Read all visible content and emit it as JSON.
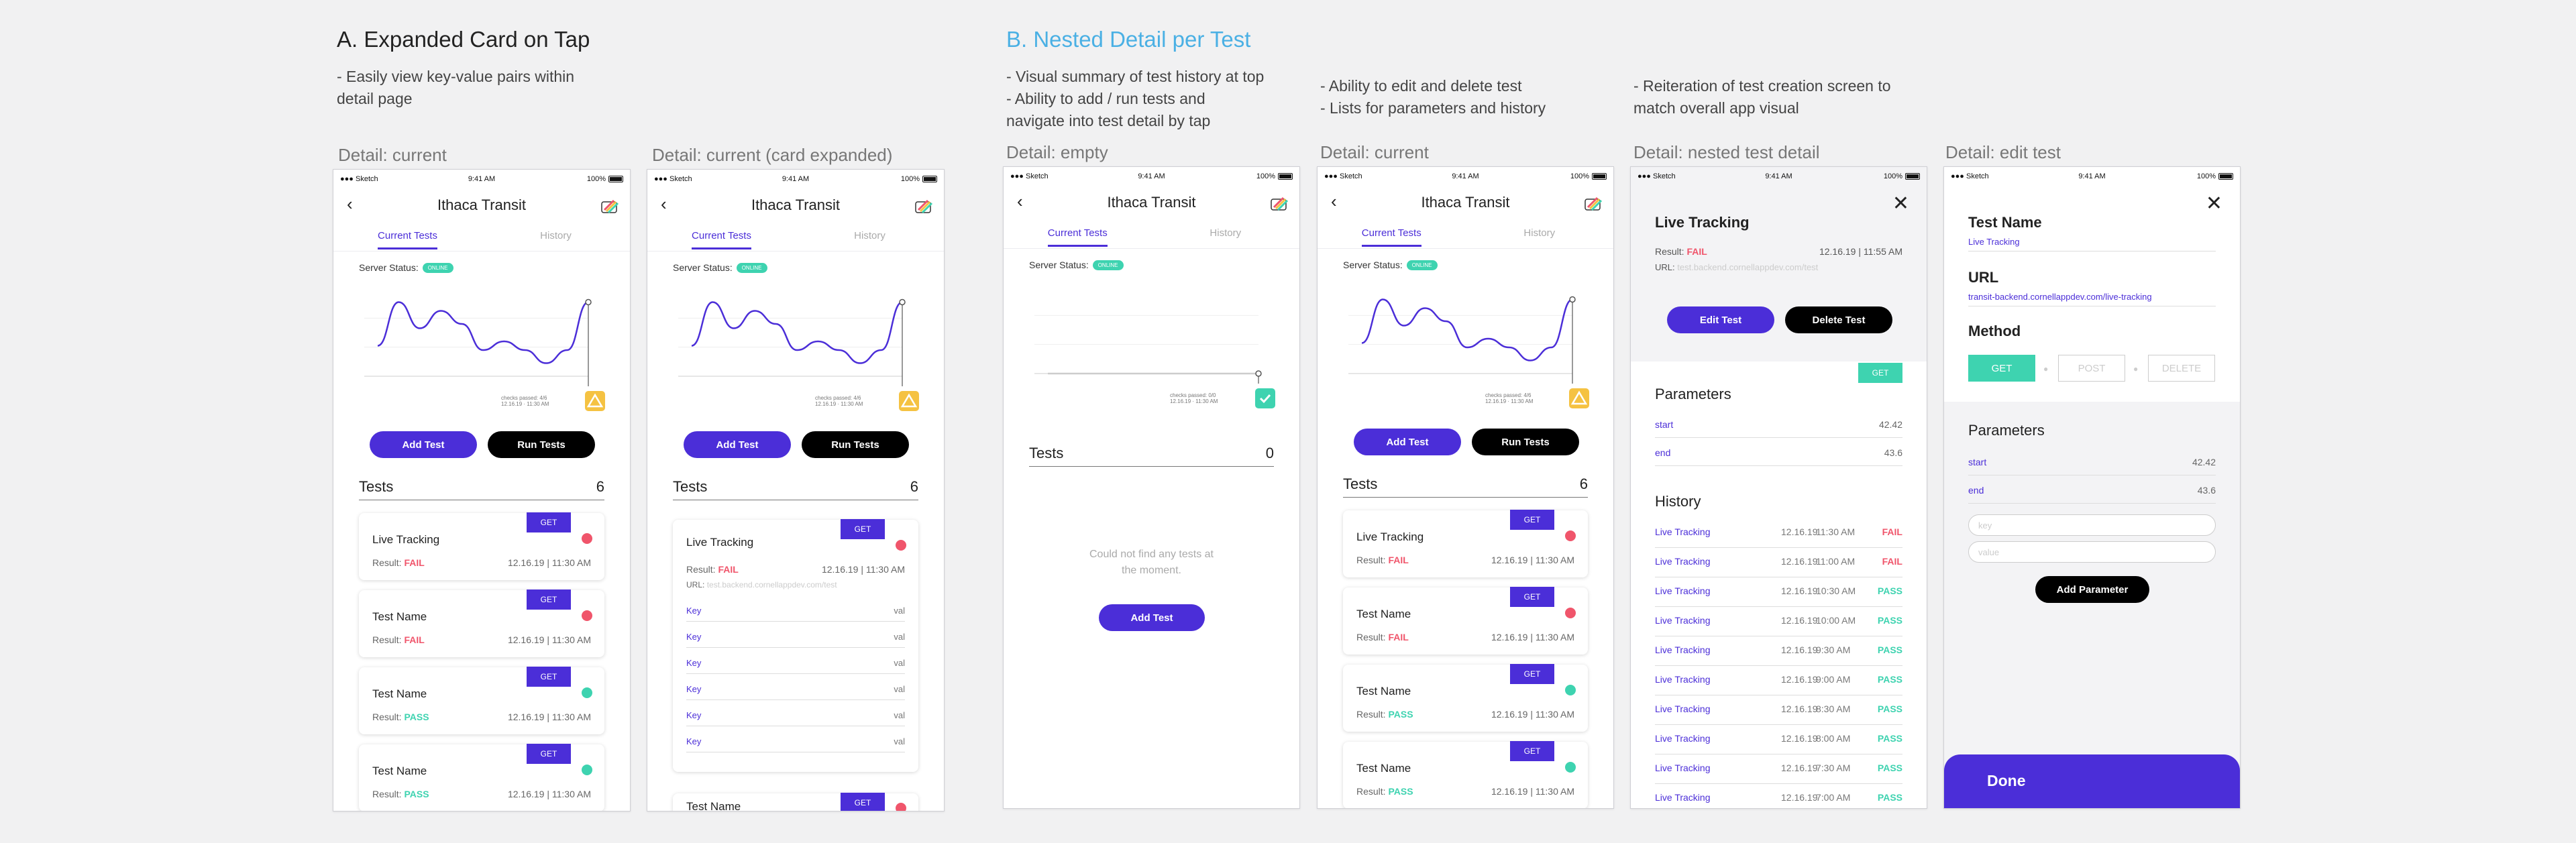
{
  "sections": {
    "a": {
      "title": "A. Expanded Card on Tap",
      "note_lines": [
        "- Easily view key-value pairs within",
        "detail page"
      ]
    },
    "b": {
      "title": "B. Nested Detail per Test",
      "note_lines": [
        "- Visual summary of test history at top",
        "- Ability to add / run tests and",
        "navigate into test detail by tap"
      ]
    },
    "c": {
      "note_lines": [
        "- Ability to edit and delete test",
        "- Lists for parameters and history"
      ]
    },
    "d": {
      "note_lines": [
        "- Reiteration of test creation screen to",
        "match overall app visual"
      ]
    }
  },
  "captions": [
    "Detail: current",
    "Detail: current (card expanded)",
    "Detail: empty",
    "Detail: current",
    "Detail: nested test detail",
    "Detail: edit test"
  ],
  "status_bar": {
    "carrier": "Sketch",
    "time": "9:41 AM",
    "battery": "100%"
  },
  "detail": {
    "title": "Ithaca Transit",
    "tabs": [
      "Current Tests",
      "History"
    ],
    "server_status": "Server Status:",
    "server_pill": "ONLINE",
    "chart_legend_1": "checks passed: 4/6",
    "chart_legend_2": "12.16.19 · 11:30 AM",
    "chart_legend_empty_1": "checks passed: 0/0",
    "chart_legend_empty_2": "12.16.19 · 11:30 AM",
    "add_test": "Add Test",
    "run_tests": "Run Tests",
    "tests_label": "Tests",
    "tests_count": "6",
    "tests_count_empty": "0",
    "empty_message_1": "Could not find any tests at",
    "empty_message_2": "the moment.",
    "result_label": "Result:",
    "method": "GET",
    "cards": [
      {
        "name": "Live Tracking",
        "result": "FAIL",
        "date": "12.16.19",
        "time": "11:30 AM"
      },
      {
        "name": "Test Name",
        "result": "FAIL",
        "date": "12.16.19",
        "time": "11:30 AM"
      },
      {
        "name": "Test Name",
        "result": "PASS",
        "date": "12.16.19",
        "time": "11:30 AM"
      },
      {
        "name": "Test Name",
        "result": "PASS",
        "date": "12.16.19",
        "time": "11:30 AM"
      }
    ],
    "expanded": {
      "url_label": "URL:",
      "url": "test.backend.cornellappdev.com/test",
      "kv": [
        {
          "k": "Key",
          "v": "val"
        },
        {
          "k": "Key",
          "v": "val"
        },
        {
          "k": "Key",
          "v": "val"
        },
        {
          "k": "Key",
          "v": "val"
        },
        {
          "k": "Key",
          "v": "val"
        },
        {
          "k": "Key",
          "v": "val"
        }
      ],
      "next_card_name": "Test Name"
    }
  },
  "nested": {
    "title": "Live Tracking",
    "result_label": "Result:",
    "result": "FAIL",
    "date": "12.16.19",
    "time": "11:55 AM",
    "url_label": "URL:",
    "url": "test.backend.cornellappdev.com/test",
    "edit": "Edit Test",
    "delete": "Delete Test",
    "method": "GET",
    "params_title": "Parameters",
    "params": [
      {
        "k": "start",
        "v": "42.42"
      },
      {
        "k": "end",
        "v": "43.6"
      }
    ],
    "history_title": "History",
    "history": [
      {
        "name": "Live Tracking",
        "date": "12.16.19",
        "time": "11:30 AM",
        "result": "FAIL"
      },
      {
        "name": "Live Tracking",
        "date": "12.16.19",
        "time": "11:00 AM",
        "result": "FAIL"
      },
      {
        "name": "Live Tracking",
        "date": "12.16.19",
        "time": "10:30 AM",
        "result": "PASS"
      },
      {
        "name": "Live Tracking",
        "date": "12.16.19",
        "time": "10:00 AM",
        "result": "PASS"
      },
      {
        "name": "Live Tracking",
        "date": "12.16.19",
        "time": "9:30 AM",
        "result": "PASS"
      },
      {
        "name": "Live Tracking",
        "date": "12.16.19",
        "time": "9:00 AM",
        "result": "PASS"
      },
      {
        "name": "Live Tracking",
        "date": "12.16.19",
        "time": "8:30 AM",
        "result": "PASS"
      },
      {
        "name": "Live Tracking",
        "date": "12.16.19",
        "time": "8:00 AM",
        "result": "PASS"
      },
      {
        "name": "Live Tracking",
        "date": "12.16.19",
        "time": "7:30 AM",
        "result": "PASS"
      },
      {
        "name": "Live Tracking",
        "date": "12.16.19",
        "time": "7:00 AM",
        "result": "PASS"
      }
    ]
  },
  "edit": {
    "name_label": "Test Name",
    "name_value": "Live Tracking",
    "url_label": "URL",
    "url_value": "transit-backend.cornellappdev.com/live-tracking",
    "method_label": "Method",
    "methods": [
      "GET",
      "POST",
      "DELETE"
    ],
    "params_title": "Parameters",
    "params": [
      {
        "k": "start",
        "v": "42.42"
      },
      {
        "k": "end",
        "v": "43.6"
      }
    ],
    "key_placeholder": "key",
    "value_placeholder": "value",
    "add_param": "Add Parameter",
    "done": "Done"
  },
  "colors": {
    "accent": "#4b2ed8",
    "pass": "#3ed3b0",
    "fail": "#f0556b",
    "title_blue": "#4ab0e4"
  },
  "chart_data": [
    {
      "type": "line",
      "series": [
        {
          "values": [
            0.35,
            0.85,
            0.55,
            0.75,
            0.6,
            0.3,
            0.4,
            0.3,
            0.15,
            0.3,
            0.85
          ]
        }
      ],
      "ylim": [
        0,
        1
      ],
      "grid": true
    },
    {
      "type": "line",
      "series": [
        {
          "values": [
            0,
            0
          ]
        }
      ],
      "ylim": [
        0,
        1
      ],
      "grid": true
    }
  ]
}
